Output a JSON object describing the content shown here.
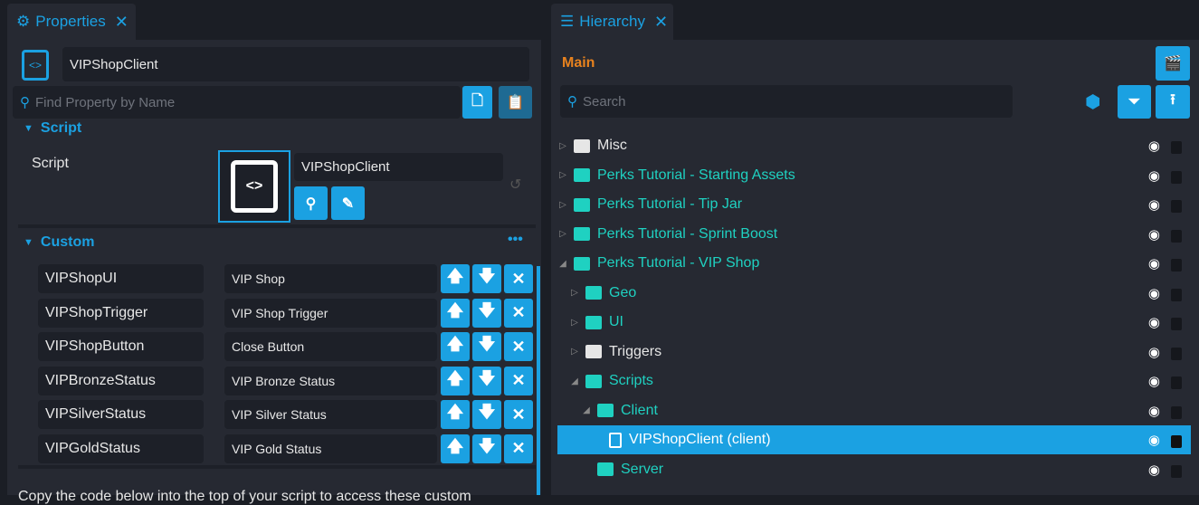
{
  "properties": {
    "tab_label": "Properties",
    "object_name": "VIPShopClient",
    "search_placeholder": "Find Property by Name",
    "script_section": "Script",
    "script_label": "Script",
    "script_value": "VIPShopClient",
    "custom_section": "Custom",
    "custom_props": [
      {
        "name": "VIPShopUI",
        "value": "VIP Shop"
      },
      {
        "name": "VIPShopTrigger",
        "value": "VIP Shop Trigger"
      },
      {
        "name": "VIPShopButton",
        "value": "Close Button"
      },
      {
        "name": "VIPBronzeStatus",
        "value": "VIP Bronze Status"
      },
      {
        "name": "VIPSilverStatus",
        "value": "VIP Silver Status"
      },
      {
        "name": "VIPGoldStatus",
        "value": "VIP Gold Status"
      }
    ],
    "footer_text": "Copy the code below into the top of your script to access these custom"
  },
  "hierarchy": {
    "tab_label": "Hierarchy",
    "scene_label": "Main",
    "search_placeholder": "Search",
    "items": [
      {
        "label": "Misc",
        "depth": 0,
        "expanded": false,
        "color": "white"
      },
      {
        "label": "Perks Tutorial - Starting Assets",
        "depth": 0,
        "expanded": false,
        "color": "teal"
      },
      {
        "label": "Perks Tutorial - Tip Jar",
        "depth": 0,
        "expanded": false,
        "color": "teal"
      },
      {
        "label": "Perks Tutorial - Sprint Boost",
        "depth": 0,
        "expanded": false,
        "color": "teal"
      },
      {
        "label": "Perks Tutorial - VIP Shop",
        "depth": 0,
        "expanded": true,
        "color": "teal"
      },
      {
        "label": "Geo",
        "depth": 1,
        "expanded": false,
        "color": "teal"
      },
      {
        "label": "UI",
        "depth": 1,
        "expanded": false,
        "color": "teal"
      },
      {
        "label": "Triggers",
        "depth": 1,
        "expanded": false,
        "color": "white"
      },
      {
        "label": "Scripts",
        "depth": 1,
        "expanded": true,
        "color": "teal"
      },
      {
        "label": "Client",
        "depth": 2,
        "expanded": true,
        "color": "teal"
      },
      {
        "label": "VIPShopClient (client)",
        "depth": 3,
        "selected": true,
        "color": "white"
      },
      {
        "label": "Server",
        "depth": 2,
        "color": "teal"
      }
    ]
  },
  "colors": {
    "accent": "#1ba1e2",
    "teal": "#1fd1c1",
    "scene": "#e8821e"
  }
}
